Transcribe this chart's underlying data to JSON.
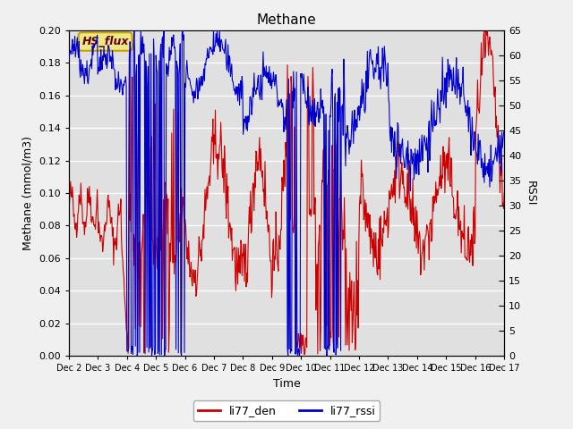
{
  "title": "Methane",
  "ylabel_left": "Methane (mmol/m3)",
  "ylabel_right": "RSSI",
  "xlabel": "Time",
  "legend_box_label": "HS_flux",
  "ylim_left": [
    0.0,
    0.2
  ],
  "ylim_right": [
    0,
    65
  ],
  "yticks_left": [
    0.0,
    0.02,
    0.04,
    0.06,
    0.08,
    0.1,
    0.12,
    0.14,
    0.16,
    0.18,
    0.2
  ],
  "yticks_right": [
    0,
    5,
    10,
    15,
    20,
    25,
    30,
    35,
    40,
    45,
    50,
    55,
    60,
    65
  ],
  "xtick_labels": [
    "Dec 2",
    "Dec 3",
    "Dec 4",
    "Dec 5",
    "Dec 6",
    "Dec 7",
    "Dec 8",
    "Dec 9",
    "Dec 10",
    "Dec 11",
    "Dec 12",
    "Dec 13",
    "Dec 14",
    "Dec 15",
    "Dec 16",
    "Dec 17"
  ],
  "bg_color": "#e0e0e0",
  "fig_color": "#f0f0f0",
  "line_red": "#cc0000",
  "line_blue": "#0000cc",
  "legend_label_red": "li77_den",
  "legend_label_blue": "li77_rssi",
  "legend_box_bg": "#ece888",
  "legend_box_edge": "#c8a000",
  "title_fontsize": 11,
  "axis_label_fontsize": 9,
  "tick_fontsize": 8
}
